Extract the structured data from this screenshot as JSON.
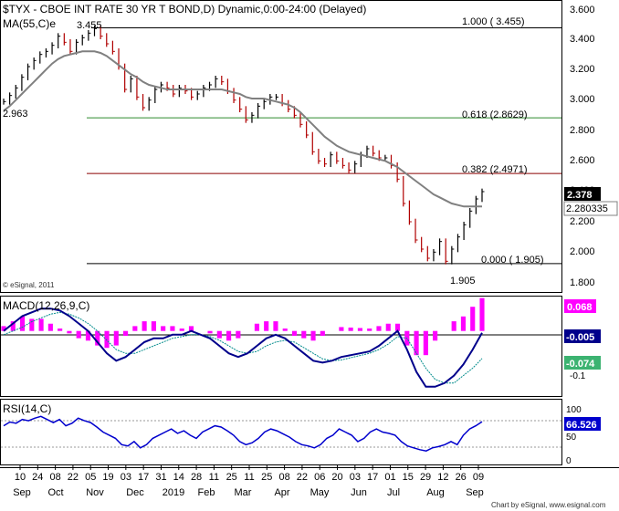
{
  "chart_data": {
    "type": "line",
    "title": "$TYX - CBOE INT RATE 30 YR T BOND,D) Dynamic,0:00-24:00 (Delayed)",
    "colors": {
      "bar": "#b00000",
      "ma": "#808080",
      "fib_high": "#000000",
      "fib_618": "#2e8b2e",
      "fib_382": "#8b0000",
      "last_price_bg": "#000000",
      "ma_value_bg": "#ffffff",
      "macd_line": "#00008b",
      "macd_signal": "#008b8b",
      "macd_hist": "#ff00ff",
      "rsi_line": "#0000cd"
    },
    "price_panel": {
      "ma_label": "MA(55,C)e",
      "y_ticks": [
        "3.600",
        "3.400",
        "3.200",
        "3.000",
        "2.800",
        "2.600",
        "2.400",
        "2.200",
        "2.000",
        "1.800"
      ],
      "ylim": [
        1.73,
        3.62
      ],
      "annotations": {
        "high": "3.455",
        "start": "2.963",
        "low": "1.905",
        "copyright": "© eSignal, 2011"
      },
      "fib_levels": [
        {
          "label": "1.000 ( 3.455)",
          "value": 3.455,
          "color": "#000000"
        },
        {
          "label": "0.618 (2.8629)",
          "value": 2.8629,
          "color": "#2e8b2e"
        },
        {
          "label": "0.382 (2.4971)",
          "value": 2.4971,
          "color": "#8b0000"
        },
        {
          "label": "0.000 ( 1.905)",
          "value": 1.905,
          "color": "#000000"
        }
      ],
      "last_price": "2.378",
      "ma_value": "2.280335",
      "price_series": [
        2.97,
        3.01,
        3.06,
        3.13,
        3.2,
        3.24,
        3.28,
        3.3,
        3.34,
        3.4,
        3.36,
        3.3,
        3.36,
        3.39,
        3.42,
        3.45,
        3.4,
        3.35,
        3.3,
        3.2,
        3.05,
        3.12,
        3.0,
        2.93,
        2.98,
        3.05,
        3.08,
        3.06,
        3.02,
        3.06,
        3.04,
        3.0,
        3.02,
        3.06,
        3.08,
        3.12,
        3.1,
        3.04,
        2.98,
        2.92,
        2.85,
        2.88,
        2.94,
        2.97,
        3.0,
        3.0,
        2.96,
        2.92,
        2.88,
        2.82,
        2.75,
        2.64,
        2.58,
        2.56,
        2.62,
        2.58,
        2.55,
        2.52,
        2.56,
        2.62,
        2.66,
        2.63,
        2.6,
        2.6,
        2.55,
        2.46,
        2.3,
        2.18,
        2.06,
        2.0,
        1.94,
        1.98,
        2.05,
        1.92,
        2.0,
        2.08,
        2.16,
        2.25,
        2.33,
        2.378
      ],
      "ma_series": [
        2.91,
        2.94,
        2.98,
        3.02,
        3.06,
        3.1,
        3.14,
        3.18,
        3.22,
        3.25,
        3.27,
        3.28,
        3.29,
        3.3,
        3.3,
        3.3,
        3.29,
        3.27,
        3.24,
        3.21,
        3.18,
        3.15,
        3.13,
        3.1,
        3.08,
        3.07,
        3.06,
        3.05,
        3.05,
        3.05,
        3.05,
        3.05,
        3.05,
        3.05,
        3.05,
        3.05,
        3.05,
        3.04,
        3.03,
        3.02,
        3.0,
        2.99,
        2.99,
        2.99,
        2.98,
        2.97,
        2.96,
        2.95,
        2.93,
        2.9,
        2.86,
        2.82,
        2.78,
        2.74,
        2.71,
        2.68,
        2.66,
        2.64,
        2.63,
        2.62,
        2.61,
        2.6,
        2.59,
        2.58,
        2.56,
        2.54,
        2.51,
        2.48,
        2.45,
        2.42,
        2.39,
        2.36,
        2.34,
        2.32,
        2.3,
        2.29,
        2.28,
        2.28,
        2.28,
        2.28
      ]
    },
    "macd_panel": {
      "label": "MACD(12,26,9,C)",
      "y_ticks": [
        "-0.1"
      ],
      "ylim": [
        -0.17,
        0.09
      ],
      "hist_value": "0.068",
      "macd_value": "-0.005",
      "signal_value": "-0.074",
      "macd_series": [
        0.0,
        0.02,
        0.04,
        0.05,
        0.06,
        0.06,
        0.055,
        0.04,
        0.02,
        0.0,
        -0.03,
        -0.06,
        -0.08,
        -0.07,
        -0.05,
        -0.03,
        -0.02,
        -0.02,
        -0.01,
        -0.01,
        0.0,
        -0.01,
        -0.02,
        -0.04,
        -0.06,
        -0.07,
        -0.06,
        -0.04,
        -0.02,
        -0.01,
        -0.02,
        -0.04,
        -0.06,
        -0.08,
        -0.085,
        -0.08,
        -0.07,
        -0.065,
        -0.06,
        -0.055,
        -0.04,
        -0.02,
        0.0,
        -0.05,
        -0.11,
        -0.15,
        -0.15,
        -0.14,
        -0.12,
        -0.09,
        -0.05,
        -0.005
      ],
      "signal_series": [
        -0.01,
        0.0,
        0.01,
        0.025,
        0.035,
        0.045,
        0.05,
        0.045,
        0.035,
        0.02,
        0.0,
        -0.025,
        -0.05,
        -0.06,
        -0.06,
        -0.05,
        -0.04,
        -0.03,
        -0.02,
        -0.015,
        -0.01,
        -0.01,
        -0.015,
        -0.025,
        -0.04,
        -0.055,
        -0.06,
        -0.055,
        -0.04,
        -0.03,
        -0.025,
        -0.03,
        -0.045,
        -0.06,
        -0.075,
        -0.08,
        -0.078,
        -0.072,
        -0.066,
        -0.06,
        -0.05,
        -0.035,
        -0.015,
        -0.02,
        -0.06,
        -0.1,
        -0.13,
        -0.14,
        -0.14,
        -0.12,
        -0.1,
        -0.074
      ],
      "hist_series": [
        0.01,
        0.02,
        0.03,
        0.025,
        0.025,
        0.015,
        0.005,
        -0.005,
        -0.015,
        -0.02,
        -0.03,
        -0.035,
        -0.03,
        -0.01,
        0.01,
        0.02,
        0.02,
        0.01,
        0.01,
        0.005,
        0.01,
        0.0,
        -0.005,
        -0.015,
        -0.02,
        -0.015,
        0.0,
        0.015,
        0.02,
        0.02,
        0.005,
        -0.01,
        -0.015,
        -0.02,
        -0.01,
        0.0,
        0.008,
        0.007,
        0.006,
        0.005,
        0.01,
        0.015,
        0.015,
        -0.03,
        -0.05,
        -0.05,
        -0.02,
        0.0,
        0.02,
        0.03,
        0.05,
        0.068
      ]
    },
    "rsi_panel": {
      "label": "RSI(14,C)",
      "y_ticks": [
        "100",
        "50",
        "0"
      ],
      "ylim": [
        0,
        100
      ],
      "value": "66.526",
      "rsi_series": [
        60,
        66,
        64,
        70,
        68,
        72,
        75,
        70,
        65,
        70,
        60,
        64,
        72,
        68,
        65,
        58,
        50,
        45,
        40,
        30,
        28,
        35,
        25,
        30,
        40,
        45,
        50,
        55,
        48,
        52,
        45,
        40,
        50,
        55,
        60,
        58,
        52,
        45,
        35,
        30,
        33,
        40,
        50,
        55,
        52,
        47,
        42,
        35,
        30,
        28,
        25,
        30,
        40,
        45,
        55,
        50,
        45,
        35,
        40,
        50,
        55,
        50,
        48,
        45,
        35,
        28,
        25,
        22,
        20,
        25,
        27,
        30,
        35,
        30,
        45,
        55,
        60,
        66.526
      ]
    },
    "x_axis": {
      "day_ticks": [
        "10",
        "24",
        "08",
        "22",
        "05",
        "19",
        "03",
        "17",
        "31",
        "14",
        "28",
        "11",
        "25",
        "11",
        "25",
        "08",
        "22",
        "06",
        "20",
        "03",
        "17",
        "01",
        "15",
        "29",
        "12",
        "26",
        "09"
      ],
      "month_ticks": [
        "Sep",
        "Oct",
        "Nov",
        "Dec",
        "2019",
        "Feb",
        "Mar",
        "Apr",
        "May",
        "Jun",
        "Jul",
        "Aug",
        "Sep"
      ]
    },
    "footer": "Chart by eSignal, www.esignal.com"
  }
}
